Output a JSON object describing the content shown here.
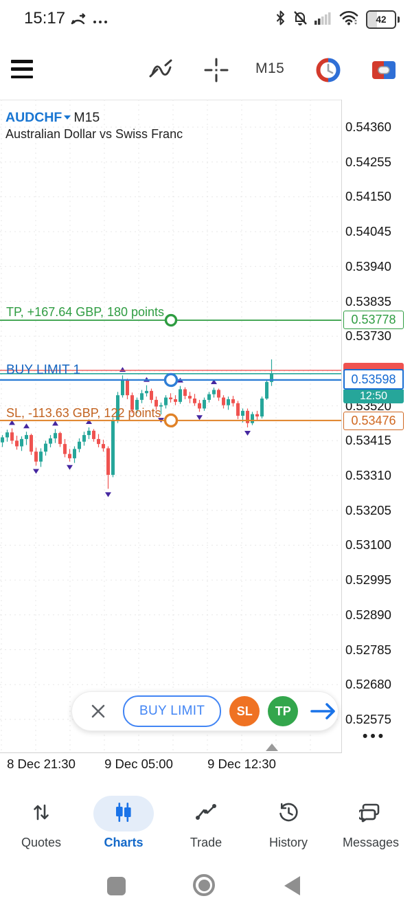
{
  "status_bar": {
    "time": "15:17",
    "battery": "42",
    "left_icons": [
      "call-forward-icon",
      "more-dots-icon"
    ],
    "right_icons": [
      "bluetooth-icon",
      "notifications-muted-icon",
      "cell-signal-icon",
      "wifi-icon",
      "battery-icon"
    ]
  },
  "toolbar": {
    "timeframe": "M15",
    "icons": [
      "menu-icon",
      "chart-type-icon",
      "crosshair-icon",
      "session-clock-icon",
      "one-click-trading-icon"
    ]
  },
  "chart": {
    "symbol": "AUDCHF",
    "timeframe": "M15",
    "description": "Australian Dollar vs Swiss Franc",
    "timer": "12:50",
    "axis_labels": [
      "0.54360",
      "0.54255",
      "0.54150",
      "0.54045",
      "0.53940",
      "0.53835",
      "0.53730",
      "0.53520",
      "0.53415",
      "0.53310",
      "0.53205",
      "0.53100",
      "0.52995",
      "0.52890",
      "0.52785",
      "0.52680",
      "0.52575"
    ],
    "x_labels": [
      "8 Dec 21:30",
      "9 Dec 05:00",
      "9 Dec 12:30"
    ],
    "levels": {
      "tp": {
        "label": "TP, +167.64 GBP, 180 points",
        "price": 0.53778,
        "price_text": "0.53778"
      },
      "order": {
        "label": "BUY LIMIT 1",
        "price": 0.53598,
        "price_text": "0.53598"
      },
      "sl": {
        "label": "SL, -113.63 GBP, 122 points",
        "price": 0.53476,
        "price_text": "0.53476"
      },
      "bid": {
        "price": 0.53617
      },
      "ask": {
        "price": 0.53627
      }
    },
    "chart_data": {
      "type": "candlestick",
      "ohlc": [
        [
          0.5341,
          0.53432,
          0.53396,
          0.53425
        ],
        [
          0.53425,
          0.53448,
          0.53412,
          0.5344
        ],
        [
          0.5344,
          0.53452,
          0.53405,
          0.53415
        ],
        [
          0.53415,
          0.5343,
          0.53388,
          0.53398
        ],
        [
          0.53398,
          0.53428,
          0.53384,
          0.5342
        ],
        [
          0.5342,
          0.53442,
          0.53402,
          0.53432
        ],
        [
          0.53432,
          0.53436,
          0.53372,
          0.53382
        ],
        [
          0.53382,
          0.53394,
          0.5334,
          0.53352
        ],
        [
          0.53352,
          0.53392,
          0.53336,
          0.53382
        ],
        [
          0.53382,
          0.53415,
          0.5337,
          0.53406
        ],
        [
          0.53406,
          0.53432,
          0.53395,
          0.53422
        ],
        [
          0.53422,
          0.5345,
          0.53408,
          0.53438
        ],
        [
          0.53438,
          0.53442,
          0.53396,
          0.53405
        ],
        [
          0.53405,
          0.5342,
          0.53365,
          0.53375
        ],
        [
          0.53375,
          0.5339,
          0.53352,
          0.53362
        ],
        [
          0.53362,
          0.53398,
          0.53348,
          0.5339
        ],
        [
          0.5339,
          0.53422,
          0.5338,
          0.53412
        ],
        [
          0.53412,
          0.53442,
          0.534,
          0.53432
        ],
        [
          0.53432,
          0.53455,
          0.5342,
          0.53445
        ],
        [
          0.53445,
          0.5345,
          0.53412,
          0.5342
        ],
        [
          0.5342,
          0.53435,
          0.53395,
          0.53405
        ],
        [
          0.53405,
          0.53418,
          0.53382,
          0.53392
        ],
        [
          0.53392,
          0.53398,
          0.5327,
          0.53312
        ],
        [
          0.53312,
          0.53485,
          0.53305,
          0.53476
        ],
        [
          0.53476,
          0.53562,
          0.53468,
          0.53552
        ],
        [
          0.53552,
          0.53612,
          0.53545,
          0.53596
        ],
        [
          0.53596,
          0.53602,
          0.5354,
          0.53552
        ],
        [
          0.53552,
          0.5356,
          0.53498,
          0.53508
        ],
        [
          0.53508,
          0.53545,
          0.53498,
          0.53538
        ],
        [
          0.53538,
          0.53568,
          0.53528,
          0.53558
        ],
        [
          0.53558,
          0.53582,
          0.53548,
          0.53565
        ],
        [
          0.53565,
          0.53572,
          0.53528,
          0.53538
        ],
        [
          0.53538,
          0.53548,
          0.53508,
          0.53518
        ],
        [
          0.53518,
          0.5353,
          0.53494,
          0.53522
        ],
        [
          0.53522,
          0.53552,
          0.53512,
          0.53545
        ],
        [
          0.53545,
          0.53558,
          0.5353,
          0.5354
        ],
        [
          0.5354,
          0.53552,
          0.53522,
          0.53532
        ],
        [
          0.53532,
          0.5358,
          0.53526,
          0.5357
        ],
        [
          0.5357,
          0.53576,
          0.5354,
          0.5355
        ],
        [
          0.5355,
          0.53562,
          0.53528,
          0.53542
        ],
        [
          0.53542,
          0.53556,
          0.5352,
          0.53528
        ],
        [
          0.53528,
          0.53538,
          0.53502,
          0.53512
        ],
        [
          0.53512,
          0.53545,
          0.53505,
          0.53538
        ],
        [
          0.53538,
          0.53562,
          0.5353,
          0.53555
        ],
        [
          0.53555,
          0.53575,
          0.53545,
          0.53568
        ],
        [
          0.53568,
          0.53572,
          0.53535,
          0.53545
        ],
        [
          0.53545,
          0.53552,
          0.53512,
          0.53522
        ],
        [
          0.53522,
          0.53548,
          0.53508,
          0.5354
        ],
        [
          0.5354,
          0.5355,
          0.53518,
          0.53528
        ],
        [
          0.53528,
          0.53535,
          0.5348,
          0.5349
        ],
        [
          0.5349,
          0.53512,
          0.5347,
          0.53505
        ],
        [
          0.53505,
          0.53512,
          0.53455,
          0.53468
        ],
        [
          0.53468,
          0.53502,
          0.53462,
          0.53495
        ],
        [
          0.53495,
          0.53505,
          0.53478,
          0.53488
        ],
        [
          0.53488,
          0.53548,
          0.53482,
          0.53542
        ],
        [
          0.53542,
          0.536,
          0.53538,
          0.53592
        ],
        [
          0.53592,
          0.5366,
          0.5358,
          0.53616
        ]
      ],
      "fractal_arrows": [
        [
          2,
          "up"
        ],
        [
          5,
          "up"
        ],
        [
          7,
          "down"
        ],
        [
          11,
          "up"
        ],
        [
          14,
          "down"
        ],
        [
          18,
          "up"
        ],
        [
          22,
          "down"
        ],
        [
          25,
          "up"
        ],
        [
          30,
          "up"
        ],
        [
          33,
          "down"
        ],
        [
          37,
          "up"
        ],
        [
          41,
          "down"
        ],
        [
          44,
          "up"
        ],
        [
          51,
          "down"
        ]
      ]
    }
  },
  "trade_panel": {
    "order_type": "BUY LIMIT",
    "sl": "SL",
    "tp": "TP"
  },
  "bottom_nav": {
    "items": [
      {
        "label": "Quotes",
        "icon": "quotes-icon",
        "active": false
      },
      {
        "label": "Charts",
        "icon": "charts-icon",
        "active": true
      },
      {
        "label": "Trade",
        "icon": "trade-icon",
        "active": false
      },
      {
        "label": "History",
        "icon": "history-icon",
        "active": false
      },
      {
        "label": "Messages",
        "icon": "messages-icon",
        "active": false
      }
    ]
  },
  "colors": {
    "candle_up": "#26a69a",
    "candle_down": "#ef5350",
    "fractal": "#4527a0",
    "tp": "#2e9c41",
    "sl_line": "#e08228",
    "sl_text": "#c2621f",
    "order_blue": "#1a6fd4",
    "order_line": "#2e7ed6",
    "bid_line": "#26a69a",
    "ask_line": "#ef5350",
    "timer_bg": "#26a69a",
    "grid": "#e7e7e7",
    "accent_blue": "#1976d2"
  }
}
